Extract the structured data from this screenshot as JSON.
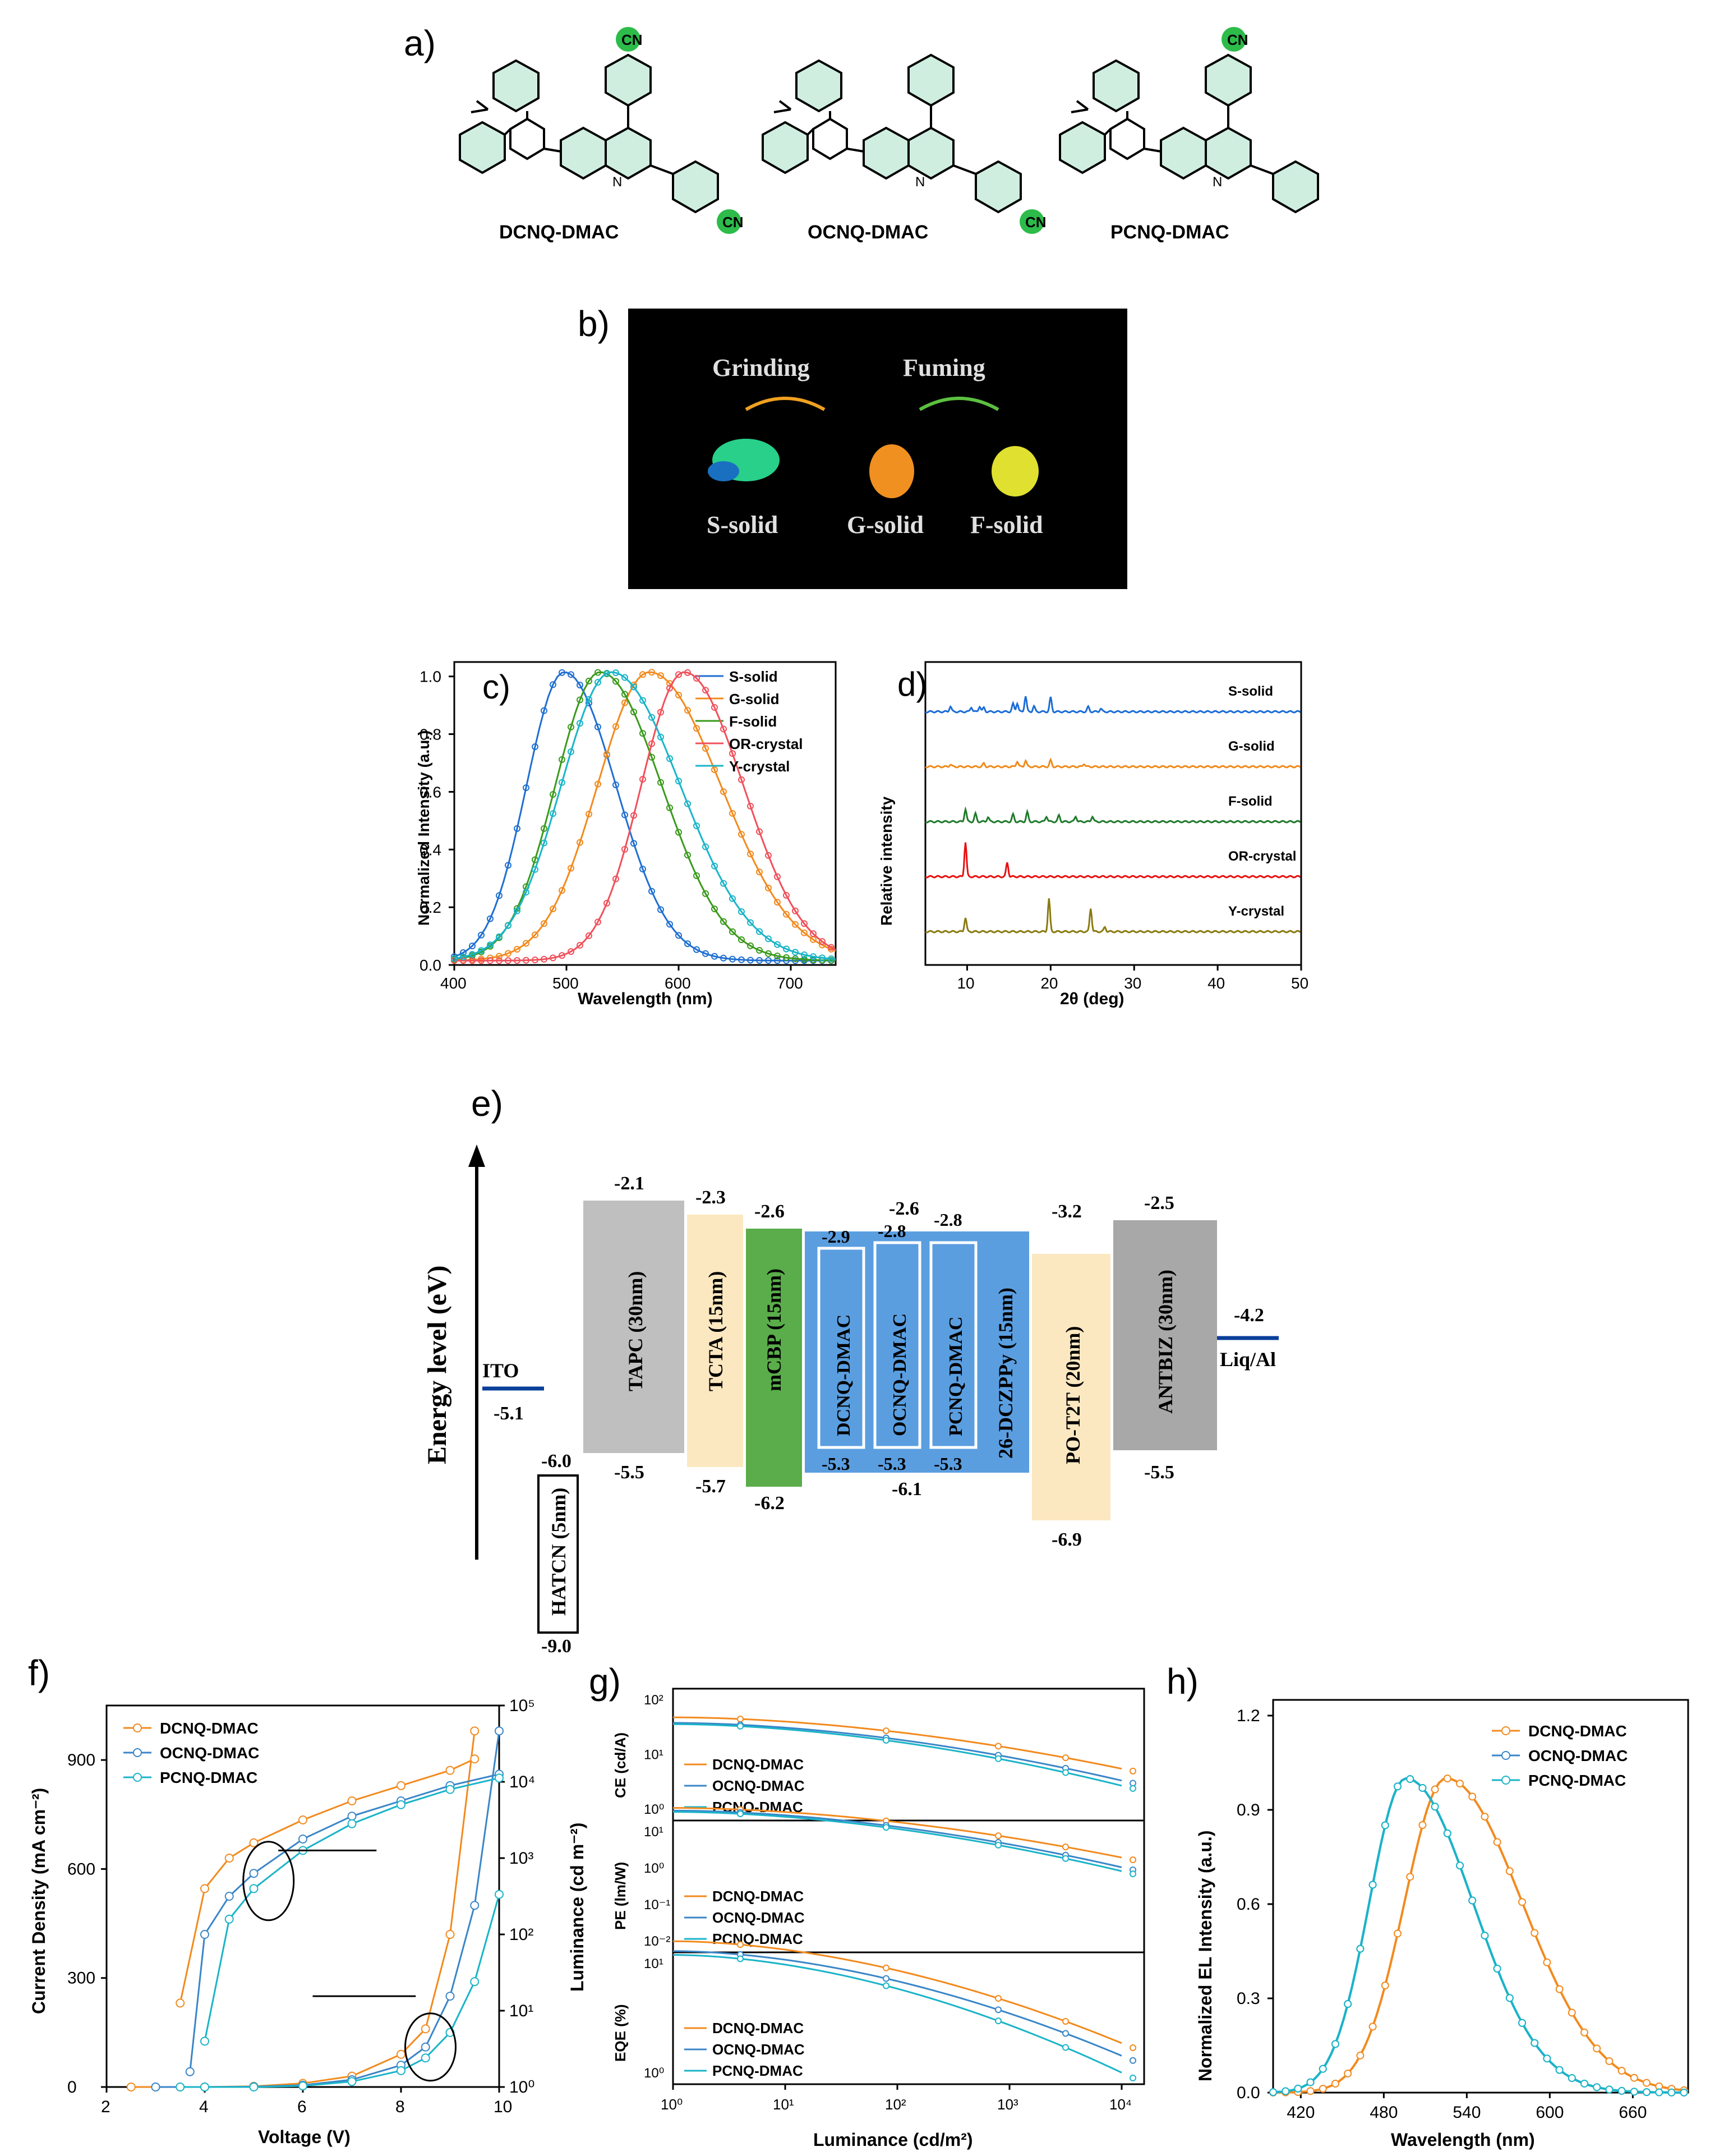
{
  "panel_labels": {
    "a": "a)",
    "b": "b)",
    "c": "c)",
    "d": "d)",
    "e": "e)",
    "f": "f)",
    "g": "g)",
    "h": "h)"
  },
  "molecules": [
    "DCNQ-DMAC",
    "OCNQ-DMAC",
    "PCNQ-DMAC"
  ],
  "cn_label": "CN",
  "n_label": "N",
  "photo": {
    "grinding": "Grinding",
    "fuming": "Fuming",
    "s_solid": "S-solid",
    "g_solid": "G-solid",
    "f_solid": "F-solid"
  },
  "colors": {
    "blue": "#1f6fd0",
    "orange": "#f28a1e",
    "green": "#3a9a1c",
    "red": "#f0505a",
    "cyan": "#1ab4c8",
    "darkgreen": "#1e7a2a",
    "olive": "#8a7a10",
    "pxrd_blue": "#1a6cd6",
    "pxrd_orange": "#f08a1a",
    "pxrd_red": "#e81010"
  },
  "chart_data": [
    {
      "type": "line",
      "title": "",
      "xlabel": "Wavelength (nm)",
      "ylabel": "Normalized Intensity (a.u.)",
      "xlim": [
        400,
        740
      ],
      "ylim": [
        0,
        1.05
      ],
      "xticks": [
        "400",
        "500",
        "600",
        "700"
      ],
      "yticks": [
        "0.0",
        "0.2",
        "0.4",
        "0.6",
        "0.8",
        "1.0"
      ],
      "series": [
        {
          "name": "S-solid",
          "peak": 498,
          "width": 42
        },
        {
          "name": "G-solid",
          "peak": 574,
          "width": 58
        },
        {
          "name": "F-solid",
          "peak": 530,
          "width": 50
        },
        {
          "name": "OR-crystal",
          "peak": 605,
          "width": 48
        },
        {
          "name": "Y-crystal",
          "peak": 540,
          "width": 56
        }
      ]
    },
    {
      "type": "line",
      "title": "",
      "xlabel": "2θ (deg)",
      "ylabel": "Relative intensity",
      "xlim": [
        5,
        50
      ],
      "xticks": [
        "10",
        "20",
        "30",
        "40",
        "50"
      ],
      "series": [
        {
          "name": "S-solid",
          "peaks": [
            [
              8,
              0.35
            ],
            [
              10.5,
              0.3
            ],
            [
              11.5,
              0.35
            ],
            [
              12,
              0.25
            ],
            [
              15.5,
              0.5
            ],
            [
              16,
              0.55
            ],
            [
              17,
              1.0
            ],
            [
              18,
              0.35
            ],
            [
              20,
              0.9
            ],
            [
              24.5,
              0.3
            ],
            [
              26,
              0.2
            ]
          ]
        },
        {
          "name": "G-solid",
          "peaks": [
            [
              8,
              0.15
            ],
            [
              12,
              0.2
            ],
            [
              16,
              0.35
            ],
            [
              17,
              0.4
            ],
            [
              20,
              0.4
            ],
            [
              24,
              0.2
            ]
          ]
        },
        {
          "name": "F-solid",
          "peaks": [
            [
              9.8,
              0.8
            ],
            [
              11,
              0.5
            ],
            [
              12.5,
              0.3
            ],
            [
              15.5,
              0.45
            ],
            [
              17.2,
              0.6
            ],
            [
              19.5,
              0.35
            ],
            [
              21,
              0.4
            ],
            [
              23,
              0.35
            ],
            [
              25,
              0.35
            ]
          ]
        },
        {
          "name": "OR-crystal",
          "peaks": [
            [
              9.8,
              2.2
            ],
            [
              14.8,
              0.9
            ]
          ]
        },
        {
          "name": "Y-crystal",
          "peaks": [
            [
              9.8,
              0.9
            ],
            [
              19.8,
              2.1
            ],
            [
              24.8,
              1.5
            ],
            [
              26.5,
              0.3
            ]
          ]
        }
      ]
    },
    {
      "type": "line",
      "title": "",
      "xlabel": "Voltage (V)",
      "ylabel": "Current Density (mA cm⁻²)",
      "y2label": "Luminance (cd m⁻²)",
      "xlim": [
        2,
        10
      ],
      "ylim": [
        0,
        1050
      ],
      "xticks": [
        "2",
        "4",
        "6",
        "8",
        "10"
      ],
      "yticks": [
        "0",
        "300",
        "600",
        "900"
      ],
      "y2ticks": [
        "10⁰",
        "10¹",
        "10²",
        "10³",
        "10⁴",
        "10⁵"
      ],
      "series": [
        {
          "name": "DCNQ-DMAC",
          "j": [
            [
              2.5,
              0
            ],
            [
              3,
              0
            ],
            [
              3.5,
              0
            ],
            [
              4,
              0
            ],
            [
              5,
              2
            ],
            [
              6,
              10
            ],
            [
              7,
              30
            ],
            [
              8,
              90
            ],
            [
              8.5,
              160
            ],
            [
              9,
              420
            ],
            [
              9.5,
              980
            ]
          ],
          "lum": [
            [
              3.5,
              1.1
            ],
            [
              4,
              2.6
            ],
            [
              4.5,
              3.0
            ],
            [
              5,
              3.2
            ],
            [
              6,
              3.5
            ],
            [
              7,
              3.75
            ],
            [
              8,
              3.95
            ],
            [
              9,
              4.15
            ],
            [
              9.5,
              4.3
            ]
          ]
        },
        {
          "name": "OCNQ-DMAC",
          "j": [
            [
              3,
              0
            ],
            [
              4,
              0
            ],
            [
              5,
              1
            ],
            [
              6,
              5
            ],
            [
              7,
              20
            ],
            [
              8,
              60
            ],
            [
              8.5,
              110
            ],
            [
              9,
              250
            ],
            [
              9.5,
              500
            ],
            [
              10,
              980
            ]
          ],
          "lum": [
            [
              3.7,
              0.2
            ],
            [
              4,
              2.0
            ],
            [
              4.5,
              2.5
            ],
            [
              5,
              2.8
            ],
            [
              6,
              3.25
            ],
            [
              7,
              3.55
            ],
            [
              8,
              3.75
            ],
            [
              9,
              3.95
            ],
            [
              10,
              4.1
            ]
          ]
        },
        {
          "name": "PCNQ-DMAC",
          "j": [
            [
              3.5,
              0
            ],
            [
              4,
              0
            ],
            [
              5,
              0
            ],
            [
              6,
              3
            ],
            [
              7,
              15
            ],
            [
              8,
              45
            ],
            [
              8.5,
              80
            ],
            [
              9,
              150
            ],
            [
              9.5,
              290
            ],
            [
              10,
              530
            ]
          ],
          "lum": [
            [
              4,
              0.6
            ],
            [
              4.5,
              2.2
            ],
            [
              5,
              2.6
            ],
            [
              6,
              3.1
            ],
            [
              7,
              3.45
            ],
            [
              8,
              3.7
            ],
            [
              9,
              3.9
            ],
            [
              10,
              4.05
            ]
          ]
        }
      ]
    },
    {
      "type": "line",
      "title": "",
      "xlabel": "Luminance (cd/m²)",
      "xlim": [
        "10⁰",
        "10⁴"
      ],
      "xticks": [
        "10⁰",
        "10¹",
        "10²",
        "10³",
        "10⁴"
      ],
      "subplots": [
        {
          "ylabel": "CE (cd/A)",
          "yticks": [
            "10⁰",
            "10¹",
            "10²"
          ],
          "series": [
            {
              "name": "DCNQ-DMAC",
              "start": 48,
              "end": 5
            },
            {
              "name": "OCNQ-DMAC",
              "start": 38,
              "end": 3
            },
            {
              "name": "PCNQ-DMAC",
              "start": 36,
              "end": 2.4
            }
          ]
        },
        {
          "ylabel": "PE (lm/W)",
          "yticks": [
            "10⁻²",
            "10⁻¹",
            "10⁰",
            "10¹"
          ],
          "series": [
            {
              "name": "DCNQ-DMAC",
              "start": 45,
              "end": 1.7
            },
            {
              "name": "OCNQ-DMAC",
              "start": 38,
              "end": 0.9
            },
            {
              "name": "PCNQ-DMAC",
              "start": 35,
              "end": 0.7
            }
          ]
        },
        {
          "ylabel": "EQE (%)",
          "yticks": [
            "10⁰",
            "10¹"
          ],
          "series": [
            {
              "name": "DCNQ-DMAC",
              "start": 16,
              "end": 1.7
            },
            {
              "name": "OCNQ-DMAC",
              "start": 13,
              "end": 1.3
            },
            {
              "name": "PCNQ-DMAC",
              "start": 12,
              "end": 0.9
            }
          ]
        }
      ]
    },
    {
      "type": "line",
      "title": "",
      "xlabel": "Wavelength (nm)",
      "ylabel": "Normalized EL Intensity (a.u.)",
      "xlim": [
        400,
        700
      ],
      "ylim": [
        0,
        1.25
      ],
      "xticks": [
        "420",
        "480",
        "540",
        "600",
        "660"
      ],
      "yticks": [
        "0.0",
        "0.3",
        "0.6",
        "0.9",
        "1.2"
      ],
      "series": [
        {
          "name": "DCNQ-DMAC",
          "peak": 525,
          "width": 50
        },
        {
          "name": "OCNQ-DMAC",
          "peak": 496,
          "width": 44
        },
        {
          "name": "PCNQ-DMAC",
          "peak": 496,
          "width": 44
        }
      ]
    }
  ],
  "energy": {
    "ylabel": "Energy level (eV)",
    "layers": [
      {
        "name": "HATCN (5nm)",
        "top": "-6.0",
        "bottom": "-9.0"
      },
      {
        "name": "TAPC (30nm)",
        "top": "-2.1",
        "bottom": "-5.5"
      },
      {
        "name": "TCTA (15nm)",
        "top": "-2.3",
        "bottom": "-5.7"
      },
      {
        "name": "mCBP (15nm)",
        "top": "-2.6",
        "bottom": "-6.2"
      },
      {
        "name": "DCNQ-DMAC",
        "top": "-2.9",
        "bottom": "-5.3"
      },
      {
        "name": "OCNQ-DMAC",
        "top": "-2.8",
        "bottom": "-5.3"
      },
      {
        "name": "PCNQ-DMAC",
        "top": "-2.8",
        "bottom": "-5.3"
      },
      {
        "name": "26-DCZPPy (15nm)",
        "top": "-2.6",
        "bottom": "-6.1"
      },
      {
        "name": "PO-T2T (20nm)",
        "top": "-3.2",
        "bottom": "-6.9"
      },
      {
        "name": "ANTBIZ (30nm)",
        "top": "-2.5",
        "bottom": "-5.5"
      }
    ],
    "ito": {
      "name": "ITO",
      "value": "-5.1"
    },
    "cathode": {
      "name": "Liq/Al",
      "value": "-4.2"
    }
  }
}
